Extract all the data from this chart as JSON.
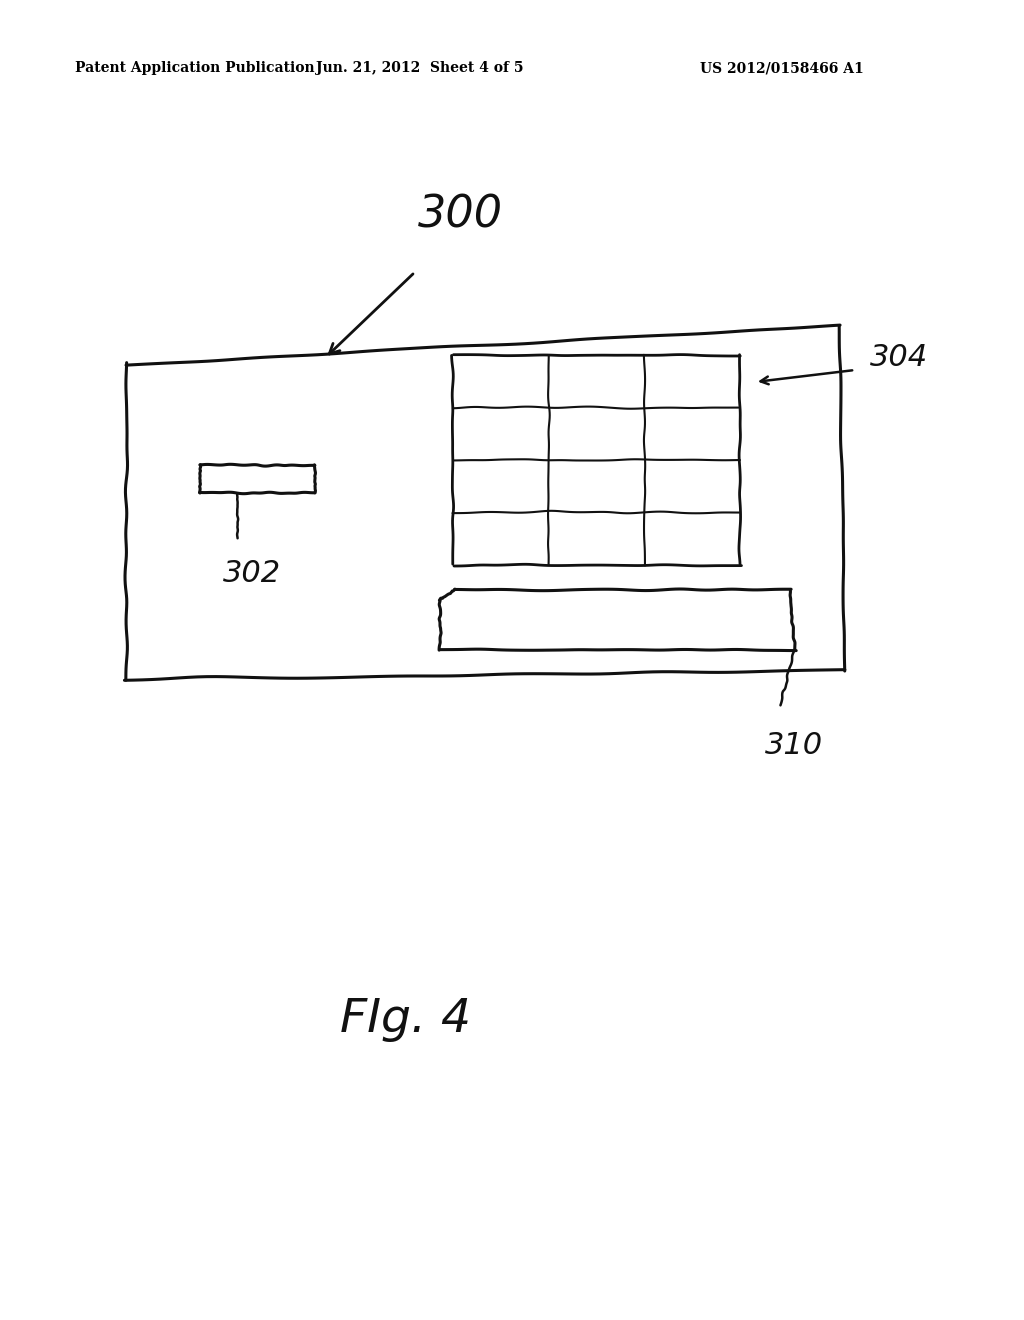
{
  "bg_color": "#ffffff",
  "header_left": "Patent Application Publication",
  "header_mid": "Jun. 21, 2012  Sheet 4 of 5",
  "header_right": "US 2012/0158466 A1",
  "fig_label": "FIg. 4",
  "label_300": "300",
  "label_302": "302",
  "label_304": "304",
  "label_310": "310",
  "color": "#111111"
}
